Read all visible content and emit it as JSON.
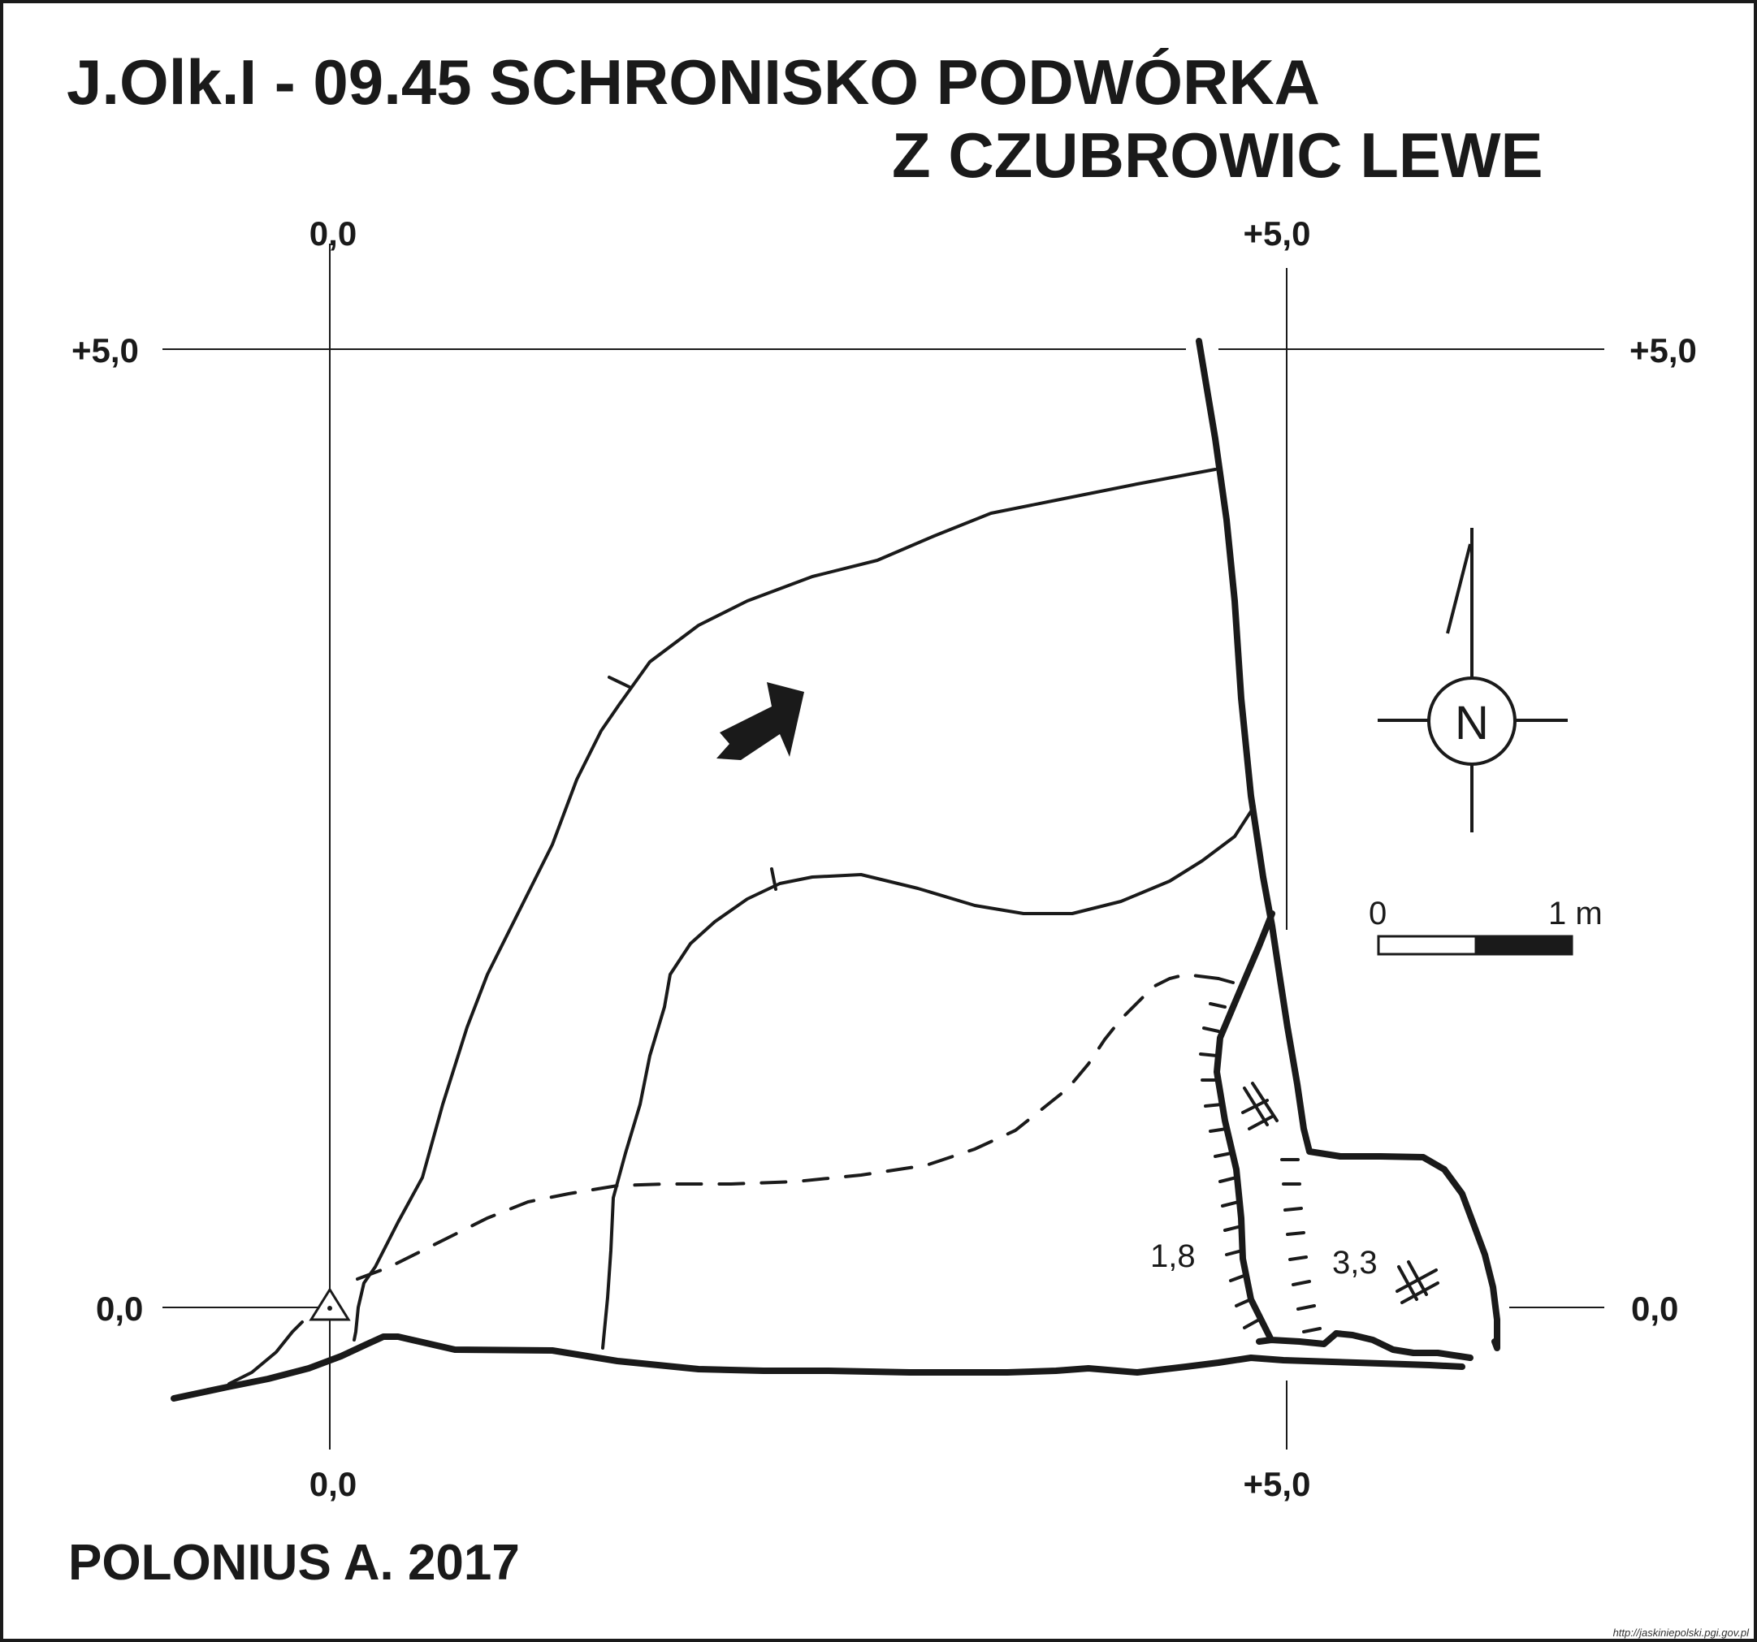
{
  "title": {
    "line1": "J.Olk.I - 09.45  SCHRONISKO PODWÓRKA",
    "line2": "Z CZUBROWIC LEWE"
  },
  "author": "POLONIUS A.  2017",
  "source": "http://jaskiniepolski.pgi.gov.pl",
  "grid": {
    "top_left_x": "0,0",
    "top_right_x": "+5,0",
    "bottom_left_x": "0,0",
    "bottom_right_x": "+5,0",
    "left_top_y": "+5,0",
    "left_bottom_y": "0,0",
    "right_top_y": "+5,0",
    "right_bottom_y": "0,0"
  },
  "depths": {
    "depth_a": "1,8",
    "depth_b": "3,3"
  },
  "scale_bar": {
    "start": "0",
    "end": "1 m"
  },
  "north_arrow": {
    "letter": "N"
  }
}
